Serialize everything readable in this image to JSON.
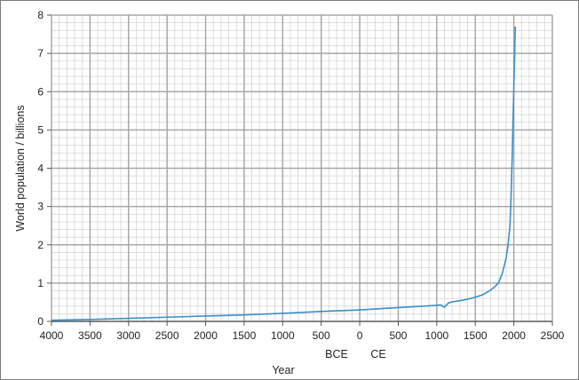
{
  "chart_data": {
    "type": "line",
    "xlabel": "Year",
    "ylabel": "World population / billions",
    "era_labels": {
      "before": "BCE",
      "after": "CE"
    },
    "xlim": [
      -4000,
      2500
    ],
    "ylim": [
      0,
      8
    ],
    "grid": true,
    "x_ticks": [
      -4000,
      -3500,
      -3000,
      -2500,
      -2000,
      -1500,
      -1000,
      -500,
      0,
      500,
      1000,
      1500,
      2000,
      2500
    ],
    "x_tick_labels": [
      "4000",
      "3500",
      "3000",
      "2500",
      "2000",
      "1500",
      "1000",
      "500",
      "0",
      "500",
      "1000",
      "1500",
      "2000",
      "2500"
    ],
    "y_ticks": [
      0,
      1,
      2,
      3,
      4,
      5,
      6,
      7,
      8
    ],
    "y_tick_labels": [
      "0",
      "1",
      "2",
      "3",
      "4",
      "5",
      "6",
      "7",
      "8"
    ],
    "series": [
      {
        "color": "#3a8fc7",
        "x": [
          -4000,
          -3500,
          -3000,
          -2500,
          -2000,
          -1500,
          -1000,
          -500,
          0,
          500,
          1000,
          1050,
          1100,
          1150,
          1200,
          1300,
          1400,
          1500,
          1600,
          1700,
          1750,
          1800,
          1850,
          1900,
          1925,
          1950,
          1960,
          1970,
          1980,
          1990,
          2000,
          2010,
          2019
        ],
        "y": [
          0.03,
          0.05,
          0.08,
          0.11,
          0.14,
          0.17,
          0.21,
          0.26,
          0.3,
          0.36,
          0.42,
          0.43,
          0.37,
          0.48,
          0.51,
          0.54,
          0.58,
          0.63,
          0.7,
          0.82,
          0.9,
          1.0,
          1.25,
          1.65,
          2.0,
          2.5,
          3.0,
          3.7,
          4.4,
          5.3,
          6.1,
          6.9,
          7.7
        ]
      }
    ]
  }
}
